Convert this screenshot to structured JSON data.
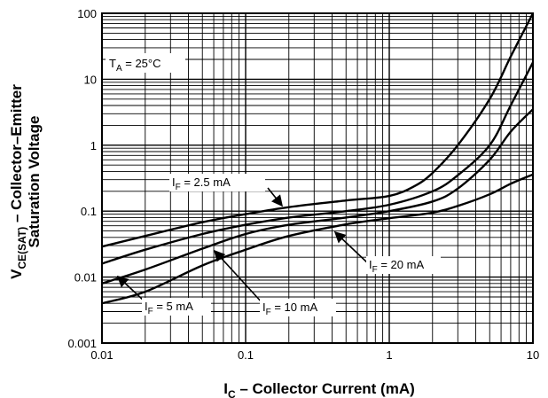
{
  "chart_data": {
    "type": "line",
    "title": "",
    "xscale": "log",
    "yscale": "log",
    "xlim": [
      0.01,
      10
    ],
    "ylim": [
      0.001,
      100
    ],
    "grid": true,
    "x_ticks": [
      "0.01",
      "0.1",
      "1",
      "10"
    ],
    "y_ticks": [
      "0.001",
      "0.01",
      "0.1",
      "1",
      "10",
      "100"
    ],
    "xlabel": {
      "main": "I",
      "sub": "C",
      "rest": " – Collector Current (mA)"
    },
    "ylabel": {
      "line1_main": "V",
      "line1_sub": "CE(SAT)",
      "line1_rest": " – Collector–Emitter",
      "line2": "Saturation Voltage"
    },
    "condition": {
      "main": "T",
      "sub": "A",
      "rest": " = 25°C"
    },
    "series": [
      {
        "label_main": "I",
        "label_sub": "F",
        "label_rest": " = 2.5 mA",
        "x": [
          0.01,
          0.02,
          0.05,
          0.1,
          0.2,
          0.5,
          1,
          1.5,
          2,
          3,
          5,
          7,
          10
        ],
        "y": [
          0.029,
          0.042,
          0.068,
          0.09,
          0.115,
          0.145,
          0.17,
          0.24,
          0.38,
          1.0,
          5.0,
          22,
          100
        ]
      },
      {
        "label_main": "I",
        "label_sub": "F",
        "label_rest": " = 5 mA",
        "x": [
          0.01,
          0.02,
          0.05,
          0.1,
          0.2,
          0.5,
          1,
          2,
          3,
          5,
          7,
          10
        ],
        "y": [
          0.016,
          0.026,
          0.045,
          0.062,
          0.08,
          0.1,
          0.125,
          0.2,
          0.35,
          1.0,
          4.0,
          18
        ]
      },
      {
        "label_main": "I",
        "label_sub": "F",
        "label_rest": " = 10 mA",
        "x": [
          0.01,
          0.02,
          0.05,
          0.1,
          0.2,
          0.5,
          1,
          2,
          3,
          5,
          7,
          10
        ],
        "y": [
          0.008,
          0.013,
          0.027,
          0.045,
          0.062,
          0.08,
          0.1,
          0.14,
          0.22,
          0.6,
          1.6,
          3.5
        ]
      },
      {
        "label_main": "I",
        "label_sub": "F",
        "label_rest": " = 20 mA",
        "x": [
          0.01,
          0.02,
          0.05,
          0.1,
          0.2,
          0.5,
          1,
          2,
          3,
          5,
          7,
          10
        ],
        "y": [
          0.004,
          0.006,
          0.015,
          0.026,
          0.042,
          0.063,
          0.078,
          0.095,
          0.12,
          0.18,
          0.26,
          0.36
        ]
      }
    ]
  }
}
